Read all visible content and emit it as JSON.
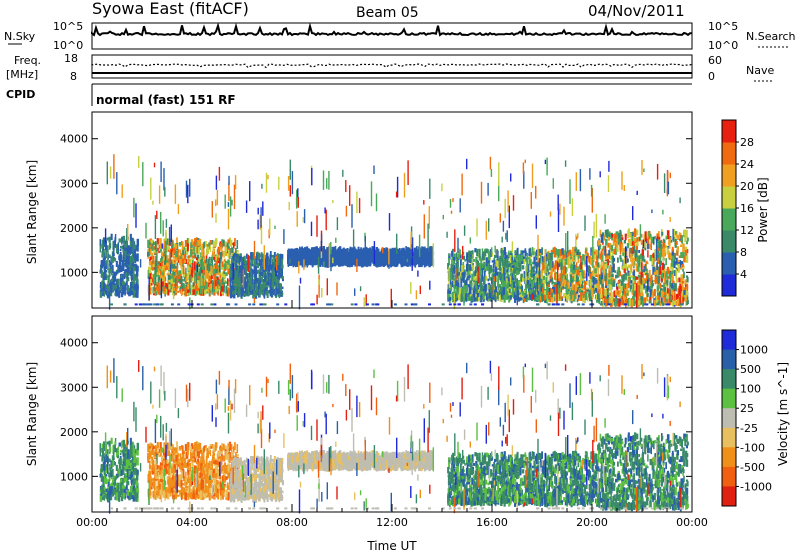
{
  "header": {
    "station": "Syowa East (fitACF)",
    "beam": "Beam 05",
    "date": "04/Nov/2011"
  },
  "strip_labels": {
    "nsky": "N.Sky",
    "freq_top": "Freq.",
    "freq_unit": "[MHz]",
    "cpid": "CPID",
    "nsearch": "N.Search",
    "nave": "Nave"
  },
  "strip_ticks": {
    "nsky_hi": "10^5",
    "nsky_lo": "10^0",
    "nsearch_hi": "10^5",
    "nsearch_lo": "10^0",
    "freq_hi": "18",
    "freq_lo": "8",
    "nave_hi": "60",
    "nave_lo": "0"
  },
  "cpid_text": "normal (fast) 151 RF",
  "colors": {
    "power_scale": [
      "#1f2ad8",
      "#2a5fb0",
      "#3a8a6a",
      "#4aa85a",
      "#c8d040",
      "#f0a020",
      "#f06a10",
      "#e82010"
    ],
    "velocity_scale": [
      "#1f2ad8",
      "#2a60a8",
      "#3a8a6a",
      "#5cc040",
      "#bdbdb2",
      "#e8c060",
      "#f0901a",
      "#f06010",
      "#e02010"
    ],
    "background": "#ffffff"
  },
  "chart_data": [
    {
      "type": "heatmap",
      "name": "Power panel",
      "xlabel": "Time UT",
      "ylabel": "Slant Range [km]",
      "xlim": [
        0,
        24
      ],
      "ylim": [
        200,
        4600
      ],
      "y_ticks": [
        1000,
        2000,
        3000,
        4000
      ],
      "colorbar": {
        "label": "Power [dB]",
        "ticks": [
          4,
          8,
          12,
          16,
          20,
          24,
          28
        ],
        "range": [
          0,
          32
        ]
      },
      "regions": [
        {
          "t": [
            0.3,
            1.8
          ],
          "r": [
            500,
            1800
          ],
          "level": [
            4,
            10
          ]
        },
        {
          "t": [
            2.2,
            5.8
          ],
          "r": [
            550,
            1700
          ],
          "level": [
            8,
            30
          ]
        },
        {
          "t": [
            5.5,
            7.6
          ],
          "r": [
            500,
            1400
          ],
          "level": [
            4,
            12
          ]
        },
        {
          "t": [
            7.8,
            13.6
          ],
          "r": [
            1200,
            1500
          ],
          "level": [
            4,
            8
          ]
        },
        {
          "t": [
            14.2,
            17.8
          ],
          "r": [
            400,
            1500
          ],
          "level": [
            4,
            18
          ]
        },
        {
          "t": [
            17.8,
            20.2
          ],
          "r": [
            400,
            1500
          ],
          "level": [
            6,
            28
          ]
        },
        {
          "t": [
            20.2,
            23.8
          ],
          "r": [
            300,
            1900
          ],
          "level": [
            6,
            30
          ]
        }
      ]
    },
    {
      "type": "heatmap",
      "name": "Velocity panel",
      "xlabel": "Time UT",
      "ylabel": "Slant Range [km]",
      "xlim": [
        0,
        24
      ],
      "ylim": [
        200,
        4600
      ],
      "y_ticks": [
        1000,
        2000,
        3000,
        4000
      ],
      "x_ticks": [
        "00:00",
        "04:00",
        "08:00",
        "12:00",
        "16:00",
        "20:00",
        "00:00"
      ],
      "colorbar": {
        "label": "Velocity [m s^-1]",
        "ticks": [
          "1000",
          "500",
          "100",
          "25",
          "-25",
          "-100",
          "-500",
          "-1000"
        ]
      },
      "regions": [
        {
          "t": [
            0.3,
            1.8
          ],
          "r": [
            500,
            1800
          ],
          "band": "green"
        },
        {
          "t": [
            2.2,
            5.8
          ],
          "r": [
            550,
            1700
          ],
          "band": "orange"
        },
        {
          "t": [
            5.5,
            7.6
          ],
          "r": [
            500,
            1400
          ],
          "band": "grey"
        },
        {
          "t": [
            7.8,
            13.6
          ],
          "r": [
            1200,
            1500
          ],
          "band": "grey"
        },
        {
          "t": [
            14.2,
            17.8
          ],
          "r": [
            400,
            1500
          ],
          "band": "green"
        },
        {
          "t": [
            17.8,
            20.2
          ],
          "r": [
            400,
            1500
          ],
          "band": "green"
        },
        {
          "t": [
            20.2,
            23.8
          ],
          "r": [
            300,
            1900
          ],
          "band": "green"
        }
      ]
    }
  ]
}
